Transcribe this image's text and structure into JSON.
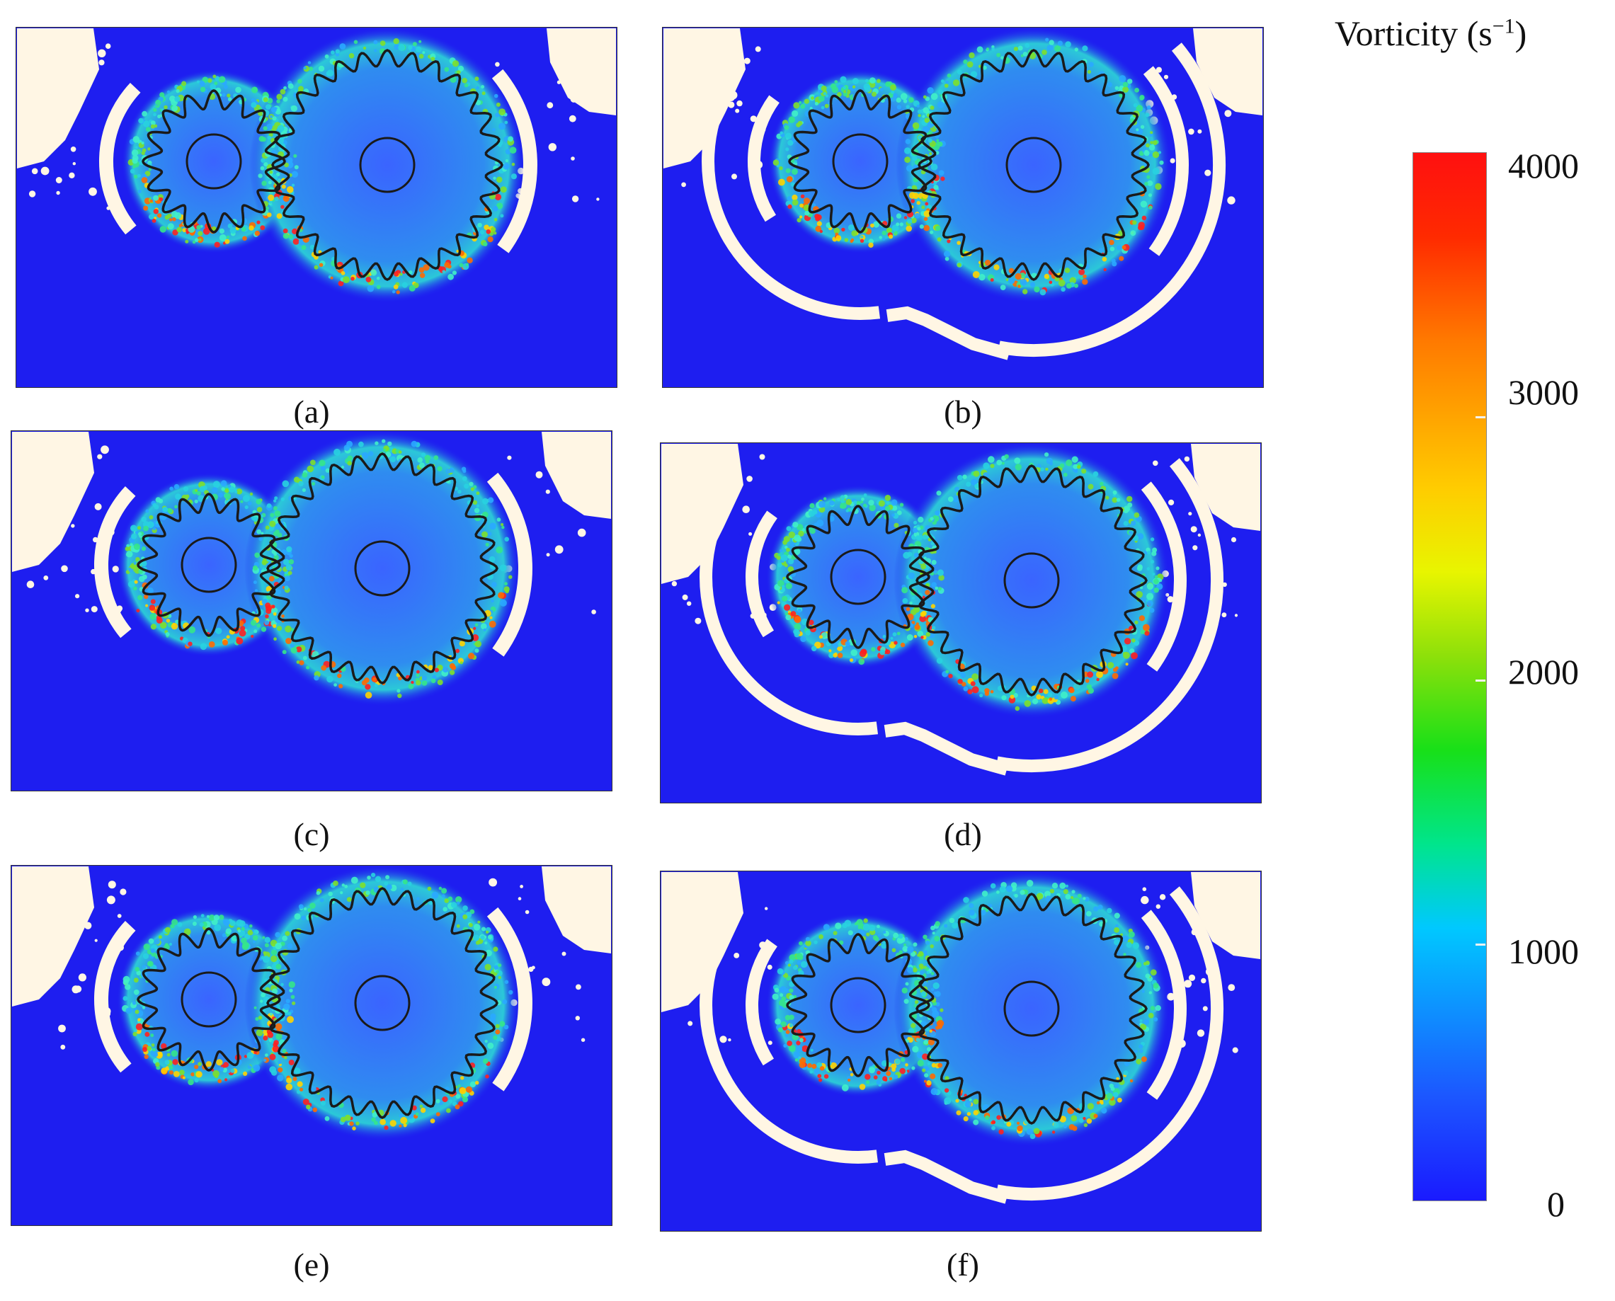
{
  "colorbar": {
    "title_main": "Vorticity (s",
    "title_exp": "−1",
    "title_close": ")",
    "labels": [
      "4000",
      "3000",
      "2000",
      "1000",
      "0"
    ],
    "min": 0,
    "max": 4000,
    "colors": [
      "#1a1aff",
      "#00c8ff",
      "#18e018",
      "#e8f500",
      "#ff7a00",
      "#ff1010"
    ]
  },
  "panels": [
    {
      "caption": "(a)",
      "shroud": "short-arcs"
    },
    {
      "caption": "(b)",
      "shroud": "long-arcs"
    },
    {
      "caption": "(c)",
      "shroud": "short-arcs"
    },
    {
      "caption": "(d)",
      "shroud": "long-arcs"
    },
    {
      "caption": "(e)",
      "shroud": "short-arcs"
    },
    {
      "caption": "(f)",
      "shroud": "long-arcs"
    }
  ],
  "colors": {
    "background_field": "#1e1ef0",
    "air_region": "#fff6e4",
    "gear_outline": "#1a1a1a"
  }
}
